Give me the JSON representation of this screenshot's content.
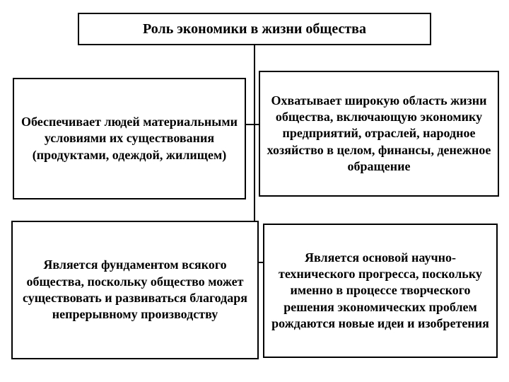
{
  "diagram": {
    "type": "tree",
    "background_color": "#ffffff",
    "border_color": "#000000",
    "border_width": 2,
    "font_family": "Georgia, serif",
    "font_weight": "bold",
    "text_color": "#000000",
    "title": {
      "text": "Роль экономики в жизни общества",
      "fontsize": 20
    },
    "nodes": {
      "top_left": {
        "text": "Обеспечивает людей материальными условиями их существования (продуктами, одеждой, жилищем)",
        "fontsize": 18
      },
      "top_right": {
        "text": "Охватывает широкую область жизни общества, включающую экономику предприятий, отраслей, народное хозяйство в целом, финансы, денежное обращение",
        "fontsize": 18
      },
      "bottom_left": {
        "text": "Является фундаментом всякого общества, поскольку общество может существовать и развиваться благодаря непрерывному производству",
        "fontsize": 18
      },
      "bottom_right": {
        "text": "Является основой научно-технического прогресса, поскольку именно в процессе творческого решения экономических проблем рождаются новые идеи и изобретения",
        "fontsize": 18
      }
    },
    "connector_color": "#000000",
    "connector_width": 2
  }
}
